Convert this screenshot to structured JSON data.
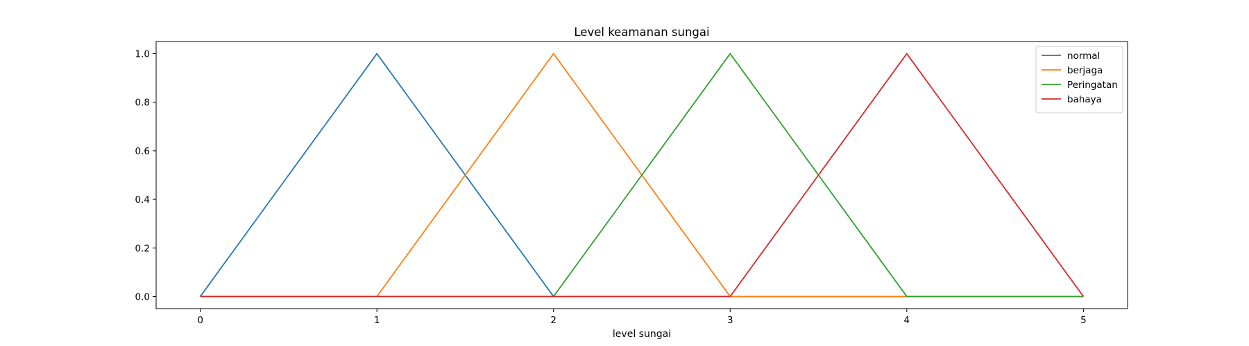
{
  "chart_data": {
    "type": "line",
    "title": "Level keamanan sungai",
    "xlabel": "level sungai",
    "ylabel": "",
    "xlim": [
      -0.25,
      5.25
    ],
    "ylim": [
      -0.05,
      1.05
    ],
    "xticks": [
      0,
      1,
      2,
      3,
      4,
      5
    ],
    "yticks": [
      0.0,
      0.2,
      0.4,
      0.6,
      0.8,
      1.0
    ],
    "ytick_labels": [
      "0.0",
      "0.2",
      "0.4",
      "0.6",
      "0.8",
      "1.0"
    ],
    "grid": false,
    "legend_position": "top-right",
    "series": [
      {
        "name": "normal",
        "color": "#1f77b4",
        "x": [
          0,
          1,
          2,
          3,
          4,
          5
        ],
        "y": [
          0,
          1,
          0,
          0,
          0,
          0
        ]
      },
      {
        "name": "berjaga",
        "color": "#ff7f0e",
        "x": [
          0,
          1,
          2,
          3,
          4,
          5
        ],
        "y": [
          0,
          0,
          1,
          0,
          0,
          0
        ]
      },
      {
        "name": "Peringatan",
        "color": "#2ca02c",
        "x": [
          0,
          1,
          2,
          3,
          4,
          5
        ],
        "y": [
          0,
          0,
          0,
          1,
          0,
          0
        ]
      },
      {
        "name": "bahaya",
        "color": "#d62728",
        "x": [
          0,
          1,
          2,
          3,
          4,
          5
        ],
        "y": [
          0,
          0,
          0,
          0,
          1,
          0
        ]
      }
    ]
  }
}
